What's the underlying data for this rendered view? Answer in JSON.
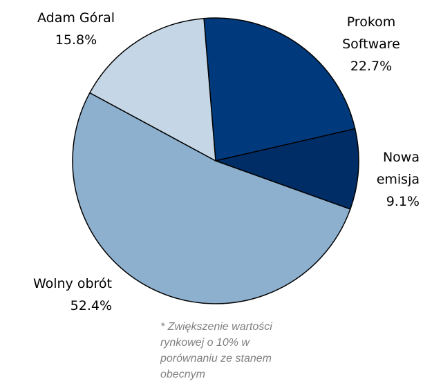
{
  "chart_data": {
    "type": "pie",
    "categories": [
      "Prokom Software",
      "Nowa emisja",
      "Wolny obrót",
      "Adam Góral"
    ],
    "values": [
      22.7,
      9.1,
      52.4,
      15.8
    ],
    "value_labels": [
      "22.7%",
      "9.1%",
      "52.4%",
      "15.8%"
    ],
    "colors": [
      "#003a7d",
      "#002d66",
      "#8db0cf",
      "#c5d7e6"
    ],
    "annotation": "* Zwiększenie wartości rynkowej o 10% w porównaniu ze stanem obecnym"
  }
}
